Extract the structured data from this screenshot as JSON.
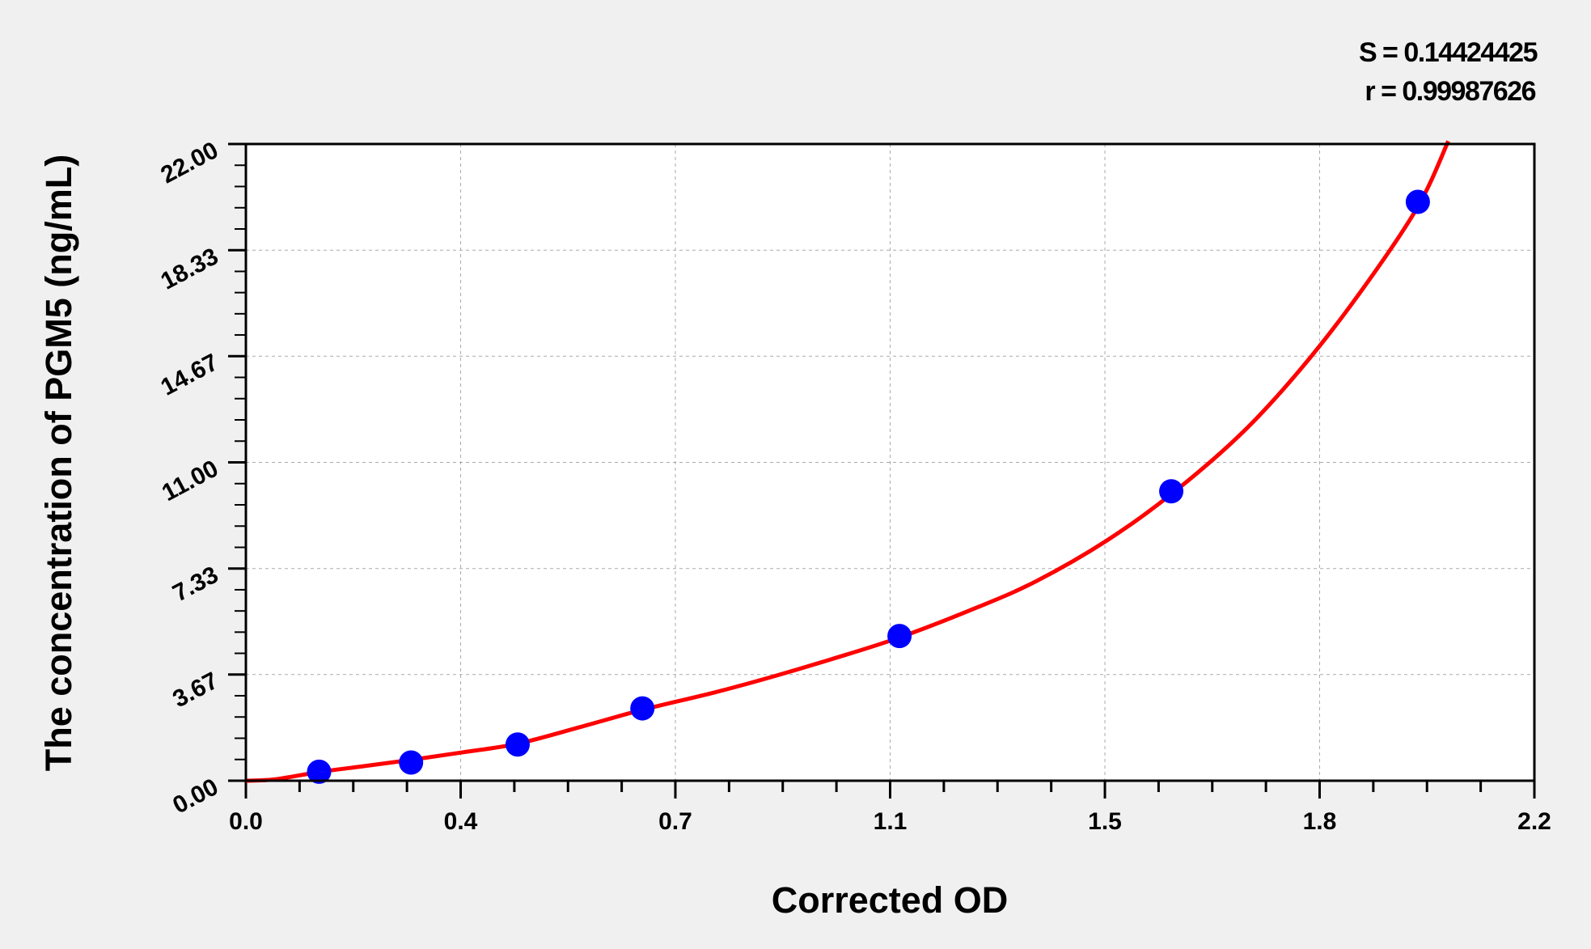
{
  "chart_data": {
    "type": "scatter",
    "xlabel": "Corrected OD",
    "ylabel": "The concentration of PGM5 (ng/mL)",
    "xlim": [
      0.0,
      2.2
    ],
    "ylim": [
      0.0,
      22.0
    ],
    "x_ticks": [
      0.0,
      0.3667,
      0.7333,
      1.1,
      1.4667,
      1.8333,
      2.2
    ],
    "x_tick_labels": [
      "0.0",
      "0.4",
      "0.7",
      "1.1",
      "1.5",
      "1.8",
      "2.2"
    ],
    "y_ticks": [
      0,
      3.67,
      7.33,
      11,
      14.67,
      18.33,
      22
    ],
    "y_tick_labels": [
      "0.00",
      "3.67",
      "7.33",
      "11.00",
      "14.67",
      "18.33",
      "22.00"
    ],
    "grid": true,
    "annotations": [
      "S = 0.14424425",
      "r = 0.99987626"
    ],
    "points": {
      "x": [
        0.125,
        0.282,
        0.464,
        0.677,
        1.116,
        1.58,
        2.001
      ],
      "y": [
        0.31,
        0.63,
        1.25,
        2.5,
        5,
        10,
        20
      ],
      "color": "#0000ff"
    },
    "fit_curve": {
      "x": [
        0.0,
        0.05,
        0.125,
        0.2,
        0.282,
        0.37,
        0.464,
        0.57,
        0.677,
        0.8,
        0.9,
        1.0,
        1.116,
        1.25,
        1.35,
        1.47,
        1.58,
        1.7,
        1.8,
        1.9,
        2.0,
        2.053
      ],
      "y": [
        0.0,
        0.05,
        0.3,
        0.5,
        0.72,
        0.98,
        1.28,
        1.85,
        2.45,
        3.05,
        3.6,
        4.2,
        4.95,
        6.0,
        6.9,
        8.3,
        9.9,
        12.0,
        14.2,
        16.8,
        19.8,
        22.1
      ],
      "color": "#ff0000"
    }
  }
}
